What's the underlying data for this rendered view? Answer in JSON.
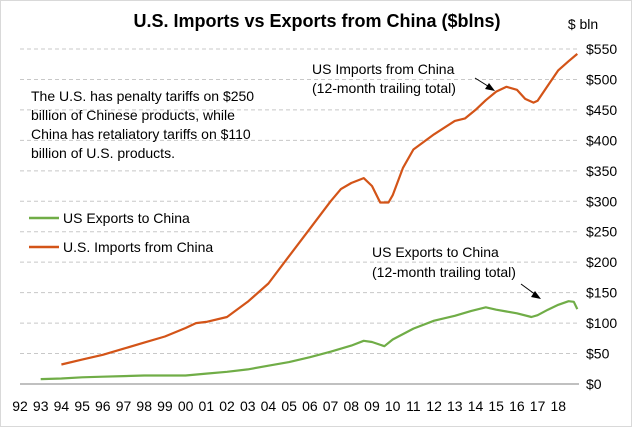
{
  "chart_data": {
    "type": "line",
    "title": "U.S. Imports vs Exports from China ($blns)",
    "y_unit_label": "$ bln",
    "ylim": [
      0,
      550
    ],
    "y_ticks": [
      0,
      50,
      100,
      150,
      200,
      250,
      300,
      350,
      400,
      450,
      500,
      550
    ],
    "y_tick_labels": [
      "$0",
      "$50",
      "$100",
      "$150",
      "$200",
      "$250",
      "$300",
      "$350",
      "$400",
      "$450",
      "$500",
      "$550"
    ],
    "x_tick_labels": [
      "92",
      "93",
      "94",
      "95",
      "96",
      "97",
      "98",
      "99",
      "00",
      "01",
      "02",
      "03",
      "04",
      "05",
      "06",
      "07",
      "08",
      "09",
      "10",
      "11",
      "12",
      "13",
      "14",
      "15",
      "16",
      "17",
      "18"
    ],
    "xlim": [
      1992,
      2019
    ],
    "grid": "horizontal",
    "legend_position": "left",
    "series": [
      {
        "name": "US Exports to China",
        "color": "#70ad47",
        "points": [
          [
            1993.0,
            8
          ],
          [
            1994.0,
            9
          ],
          [
            1995.0,
            11
          ],
          [
            1996.0,
            12
          ],
          [
            1997.0,
            13
          ],
          [
            1998.0,
            14
          ],
          [
            1999.0,
            14
          ],
          [
            2000.0,
            14
          ],
          [
            2001.0,
            17
          ],
          [
            2002.0,
            20
          ],
          [
            2003.0,
            24
          ],
          [
            2004.0,
            30
          ],
          [
            2005.0,
            36
          ],
          [
            2006.0,
            44
          ],
          [
            2007.0,
            53
          ],
          [
            2008.0,
            63
          ],
          [
            2008.6,
            71
          ],
          [
            2009.0,
            69
          ],
          [
            2009.6,
            62
          ],
          [
            2010.0,
            73
          ],
          [
            2011.0,
            91
          ],
          [
            2012.0,
            104
          ],
          [
            2013.0,
            112
          ],
          [
            2013.8,
            120
          ],
          [
            2014.5,
            126
          ],
          [
            2015.0,
            122
          ],
          [
            2015.5,
            119
          ],
          [
            2016.0,
            116
          ],
          [
            2016.7,
            110
          ],
          [
            2017.0,
            113
          ],
          [
            2017.5,
            122
          ],
          [
            2018.0,
            130
          ],
          [
            2018.5,
            136
          ],
          [
            2018.75,
            135
          ],
          [
            2018.92,
            123
          ]
        ]
      },
      {
        "name": "U.S. Imports from China",
        "color": "#d35418",
        "points": [
          [
            1994.0,
            32
          ],
          [
            1995.0,
            40
          ],
          [
            1996.0,
            48
          ],
          [
            1997.0,
            58
          ],
          [
            1998.0,
            68
          ],
          [
            1999.0,
            78
          ],
          [
            2000.0,
            92
          ],
          [
            2000.5,
            100
          ],
          [
            2001.0,
            102
          ],
          [
            2002.0,
            110
          ],
          [
            2003.0,
            135
          ],
          [
            2004.0,
            165
          ],
          [
            2005.0,
            210
          ],
          [
            2006.0,
            255
          ],
          [
            2007.0,
            300
          ],
          [
            2007.5,
            320
          ],
          [
            2008.0,
            330
          ],
          [
            2008.6,
            338
          ],
          [
            2009.0,
            325
          ],
          [
            2009.4,
            298
          ],
          [
            2009.8,
            298
          ],
          [
            2010.0,
            310
          ],
          [
            2010.5,
            355
          ],
          [
            2011.0,
            385
          ],
          [
            2012.0,
            410
          ],
          [
            2013.0,
            432
          ],
          [
            2013.5,
            436
          ],
          [
            2014.0,
            450
          ],
          [
            2014.5,
            466
          ],
          [
            2015.0,
            480
          ],
          [
            2015.5,
            488
          ],
          [
            2016.0,
            483
          ],
          [
            2016.4,
            468
          ],
          [
            2016.8,
            462
          ],
          [
            2017.0,
            465
          ],
          [
            2017.5,
            490
          ],
          [
            2018.0,
            515
          ],
          [
            2018.5,
            530
          ],
          [
            2018.92,
            542
          ]
        ]
      }
    ],
    "annotations": [
      {
        "lines": [
          "US Imports  from China",
          "(12-month trailing total)"
        ]
      },
      {
        "lines": [
          "US Exports to China",
          "(12-month trailing total)"
        ]
      }
    ],
    "note_lines": [
      "The U.S. has penalty tariffs on $250",
      "billion of Chinese products,  while",
      "China has retaliatory tariffs on $110",
      "billion of U.S. products."
    ]
  }
}
